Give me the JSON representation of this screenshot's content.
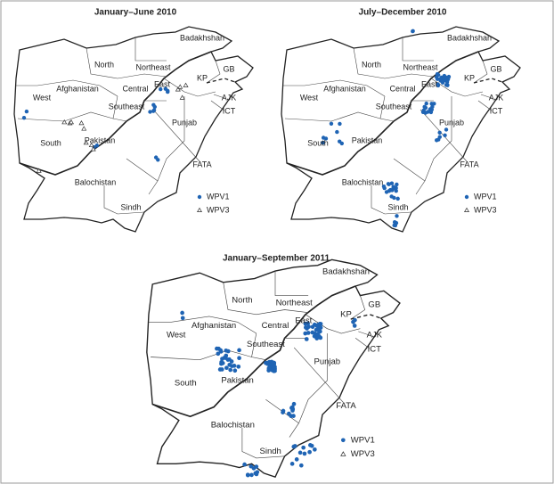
{
  "panels": [
    {
      "title": "January–June 2010",
      "regions": [
        "Badakhshan",
        "North",
        "Northeast",
        "GB",
        "KP",
        "Afghanistan",
        "Central",
        "East",
        "AJK",
        "West",
        "Southeast",
        "ICT",
        "Punjab",
        "South",
        "Pakistan",
        "FATA",
        "Balochistan",
        "Sindh"
      ],
      "legend": [
        "WPV1",
        "WPV3"
      ]
    },
    {
      "title": "July–December 2010",
      "regions": [
        "Badakhshan",
        "North",
        "Northeast",
        "GB",
        "KP",
        "Afghanistan",
        "Central",
        "East",
        "AJK",
        "West",
        "Southeast",
        "ICT",
        "Punjab",
        "South",
        "Pakistan",
        "FATA",
        "Balochistan",
        "Sindh"
      ],
      "legend": [
        "WPV1",
        "WPV3"
      ]
    },
    {
      "title": "January–September 2011",
      "regions": [
        "Badakhshan",
        "North",
        "Northeast",
        "GB",
        "KP",
        "Afghanistan",
        "Central",
        "East",
        "AJK",
        "West",
        "Southeast",
        "ICT",
        "Punjab",
        "South",
        "Pakistan",
        "FATA",
        "Balochistan",
        "Sindh"
      ],
      "legend": [
        "WPV1",
        "WPV3"
      ]
    }
  ]
}
